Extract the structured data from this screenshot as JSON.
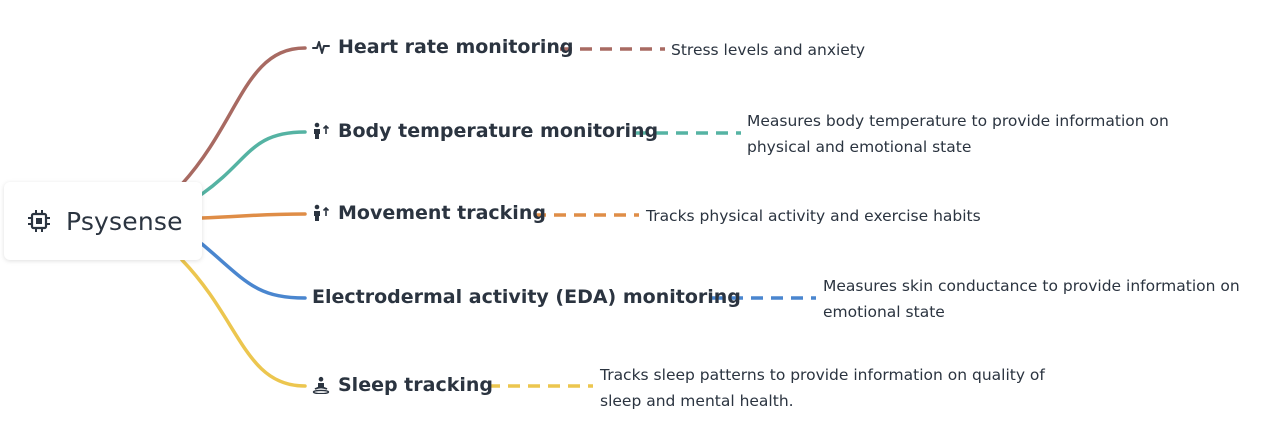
{
  "root": {
    "label": "Psysense",
    "icon": "chip-icon"
  },
  "branches": [
    {
      "label": "Heart rate monitoring",
      "icon": "heartbeat-icon",
      "color": "#a86a62",
      "details": [
        "Stress levels and anxiety"
      ]
    },
    {
      "label": "Body temperature monitoring",
      "icon": "person-up-icon",
      "color": "#55b3a3",
      "details": [
        "Measures body temperature to provide information on",
        "physical and emotional state"
      ]
    },
    {
      "label": "Movement tracking",
      "icon": "person-up-icon",
      "color": "#df8d47",
      "details": [
        "Tracks physical activity and exercise habits"
      ]
    },
    {
      "label": "Electrodermal activity (EDA) monitoring",
      "icon": "",
      "color": "#4a86cf",
      "details": [
        "Measures skin conductance to provide information on",
        "emotional state"
      ]
    },
    {
      "label": "Sleep tracking",
      "icon": "meditation-icon",
      "color": "#ecc64f",
      "details": [
        "Tracks sleep patterns to provide information on quality of",
        "sleep and mental health."
      ]
    }
  ]
}
